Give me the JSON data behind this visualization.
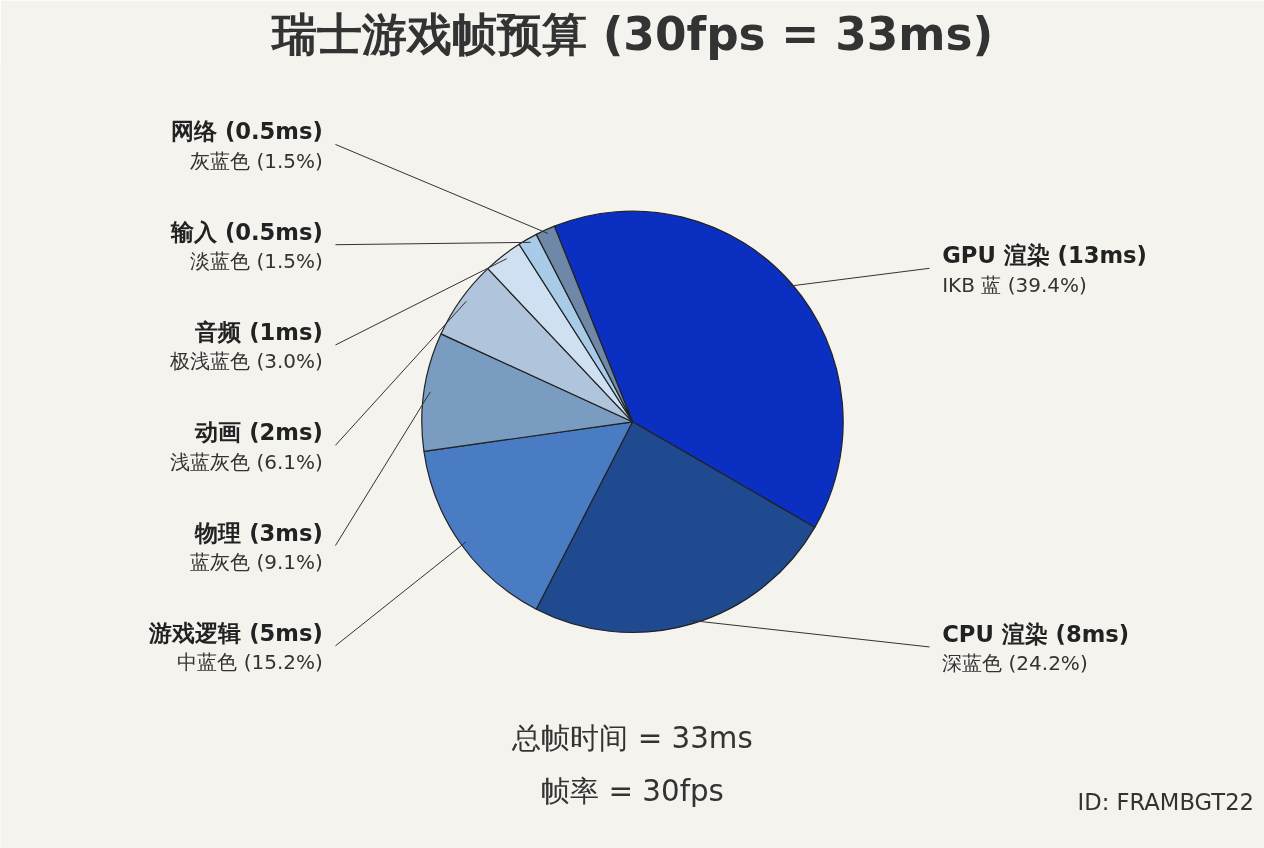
{
  "chart_data": {
    "type": "pie",
    "title": "瑞士游戏帧预算 (30fps = 33ms)",
    "categories": [
      "GPU 渲染 (13ms)",
      "CPU 渲染 (8ms)",
      "游戏逻辑 (5ms)",
      "物理 (3ms)",
      "动画 (2ms)",
      "音频 (1ms)",
      "输入 (0.5ms)",
      "网络 (0.5ms)"
    ],
    "values": [
      39.4,
      24.2,
      15.2,
      9.1,
      6.1,
      3.0,
      1.5,
      1.5
    ],
    "value_labels": [
      "IKB 蓝 (39.4%)",
      "深蓝色 (24.2%)",
      "中蓝色 (15.2%)",
      "蓝灰色 (9.1%)",
      "浅蓝灰色 (6.1%)",
      "极浅蓝色 (3.0%)",
      "淡蓝色 (1.5%)",
      "灰蓝色 (1.5%)"
    ],
    "colors": [
      "#0b2fc0",
      "#1f4a8f",
      "#4a7cc4",
      "#7a9cc0",
      "#b0c4dc",
      "#cfe0f2",
      "#a8cce8",
      "#6f88a8"
    ],
    "annotations": [
      "总帧时间 = 33ms",
      "帧率 = 30fps",
      "ID: FRAMBGT22"
    ]
  }
}
